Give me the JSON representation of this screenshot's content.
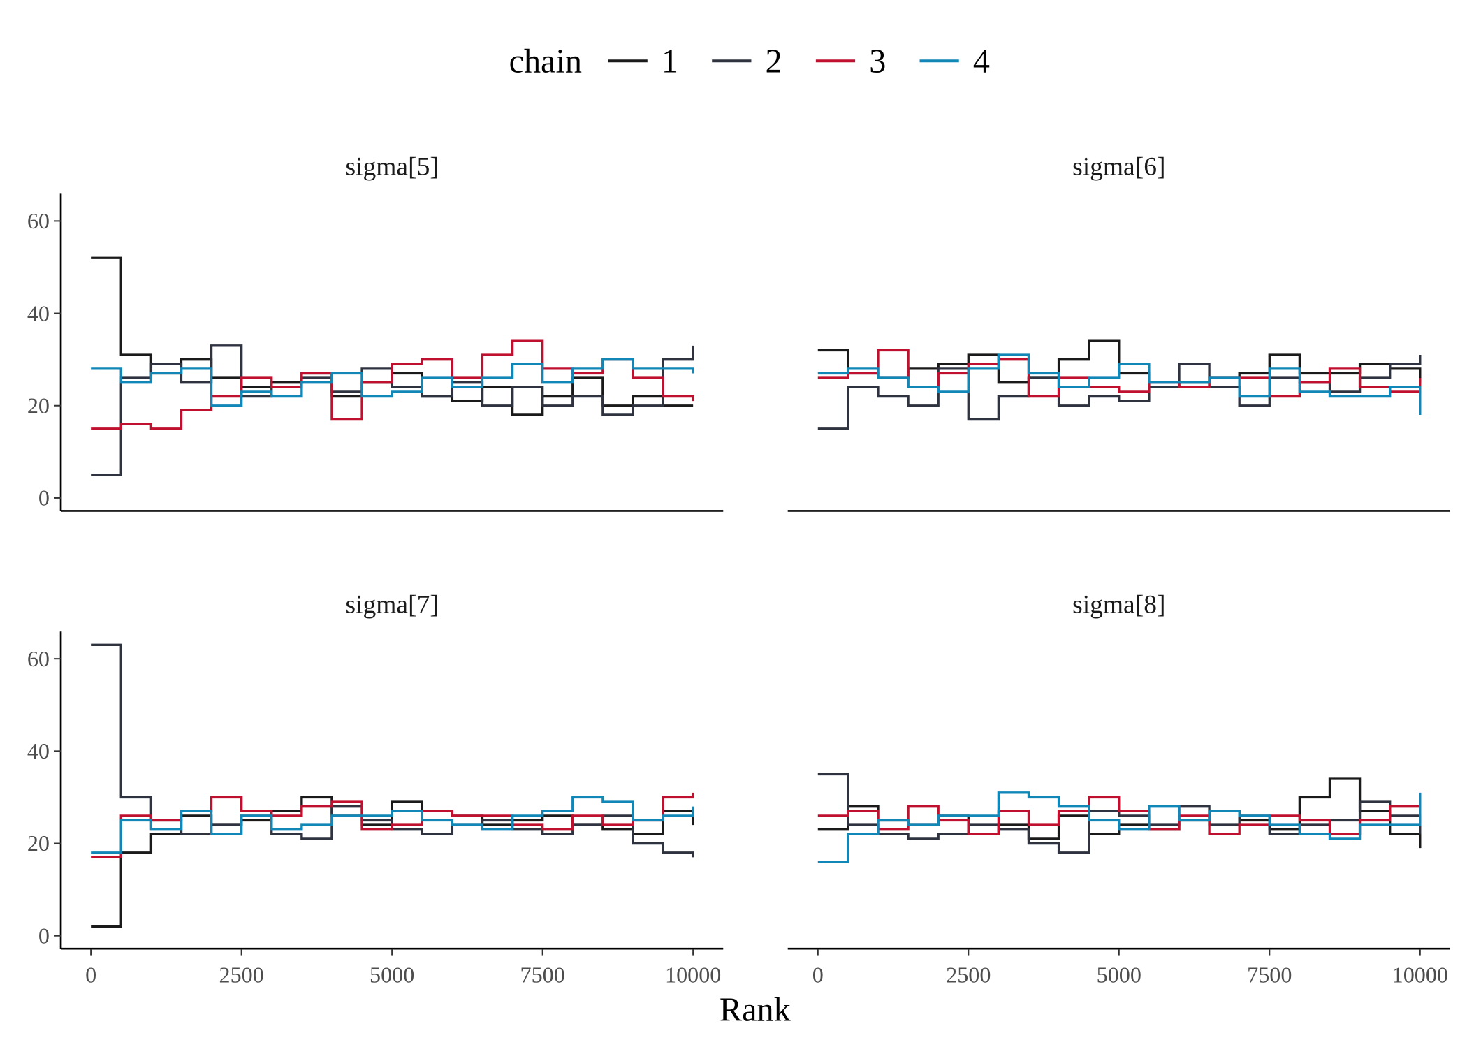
{
  "chart_data": {
    "type": "line",
    "step": true,
    "legend_title": "chain",
    "xlabel": "Rank",
    "x": [
      0,
      500,
      1000,
      1500,
      2000,
      2500,
      3000,
      3500,
      4000,
      4500,
      5000,
      5500,
      6000,
      6500,
      7000,
      7500,
      8000,
      8500,
      9000,
      9500,
      10000
    ],
    "xlim": [
      -500,
      10500
    ],
    "xticks": [
      0,
      2500,
      5000,
      7500,
      10000
    ],
    "ylim": [
      -2.8,
      65.9
    ],
    "yticks": [
      0,
      20,
      40,
      60
    ],
    "panels": [
      {
        "title": "sigma[5]",
        "series": [
          {
            "name": "1",
            "color": "#1a1a1a",
            "values": [
              52,
              31,
              27,
              30,
              26,
              24,
              25,
              27,
              22,
              25,
              27,
              22,
              21,
              24,
              18,
              22,
              26,
              20,
              22,
              20,
              20
            ]
          },
          {
            "name": "2",
            "color": "#2f3340",
            "values": [
              5,
              26,
              29,
              25,
              33,
              22,
              24,
              26,
              23,
              28,
              24,
              22,
              25,
              20,
              24,
              20,
              22,
              18,
              20,
              30,
              33
            ]
          },
          {
            "name": "3",
            "color": "#c0102f",
            "values": [
              15,
              16,
              15,
              19,
              22,
              26,
              24,
              27,
              17,
              25,
              29,
              30,
              26,
              31,
              34,
              28,
              27,
              30,
              26,
              22,
              21
            ]
          },
          {
            "name": "4",
            "color": "#1187b7",
            "values": [
              28,
              25,
              27,
              28,
              20,
              23,
              22,
              25,
              27,
              22,
              23,
              26,
              24,
              26,
              29,
              25,
              28,
              30,
              28,
              28,
              27
            ]
          }
        ]
      },
      {
        "title": "sigma[6]",
        "series": [
          {
            "name": "1",
            "color": "#1a1a1a",
            "values": [
              32,
              27,
              26,
              28,
              29,
              31,
              25,
              26,
              30,
              34,
              27,
              24,
              25,
              26,
              27,
              31,
              27,
              27,
              29,
              28,
              25
            ]
          },
          {
            "name": "2",
            "color": "#2f3340",
            "values": [
              15,
              24,
              22,
              20,
              28,
              17,
              22,
              26,
              20,
              22,
              21,
              24,
              29,
              24,
              20,
              26,
              25,
              23,
              26,
              29,
              31
            ]
          },
          {
            "name": "3",
            "color": "#c0102f",
            "values": [
              26,
              27,
              32,
              24,
              27,
              29,
              30,
              22,
              26,
              24,
              23,
              25,
              24,
              26,
              26,
              22,
              25,
              28,
              24,
              23,
              26
            ]
          },
          {
            "name": "4",
            "color": "#1187b7",
            "values": [
              27,
              28,
              26,
              24,
              23,
              28,
              31,
              27,
              24,
              26,
              29,
              25,
              25,
              26,
              22,
              28,
              23,
              22,
              22,
              24,
              18
            ]
          }
        ]
      },
      {
        "title": "sigma[7]",
        "series": [
          {
            "name": "1",
            "color": "#1a1a1a",
            "values": [
              2,
              18,
              22,
              26,
              24,
              25,
              27,
              30,
              26,
              24,
              29,
              27,
              26,
              24,
              25,
              26,
              24,
              23,
              22,
              27,
              24
            ]
          },
          {
            "name": "2",
            "color": "#2f3340",
            "values": [
              63,
              30,
              25,
              22,
              24,
              26,
              22,
              21,
              28,
              25,
              23,
              22,
              24,
              25,
              23,
              22,
              24,
              26,
              20,
              18,
              17
            ]
          },
          {
            "name": "3",
            "color": "#c0102f",
            "values": [
              17,
              26,
              25,
              27,
              30,
              27,
              26,
              28,
              29,
              23,
              24,
              27,
              26,
              26,
              24,
              23,
              26,
              24,
              25,
              30,
              31
            ]
          },
          {
            "name": "4",
            "color": "#1187b7",
            "values": [
              18,
              25,
              23,
              27,
              22,
              26,
              23,
              24,
              26,
              26,
              27,
              25,
              24,
              23,
              26,
              27,
              30,
              29,
              25,
              26,
              28
            ]
          }
        ]
      },
      {
        "title": "sigma[8]",
        "series": [
          {
            "name": "1",
            "color": "#1a1a1a",
            "values": [
              23,
              28,
              25,
              24,
              26,
              22,
              24,
              21,
              26,
              22,
              24,
              23,
              25,
              27,
              25,
              23,
              30,
              34,
              27,
              22,
              19
            ]
          },
          {
            "name": "2",
            "color": "#2f3340",
            "values": [
              35,
              24,
              22,
              21,
              22,
              24,
              23,
              20,
              18,
              27,
              26,
              24,
              28,
              24,
              26,
              22,
              24,
              25,
              29,
              26,
              22
            ]
          },
          {
            "name": "3",
            "color": "#c0102f",
            "values": [
              26,
              27,
              23,
              28,
              25,
              22,
              27,
              24,
              27,
              30,
              27,
              23,
              26,
              22,
              24,
              26,
              25,
              22,
              25,
              28,
              28
            ]
          },
          {
            "name": "4",
            "color": "#1187b7",
            "values": [
              16,
              22,
              25,
              24,
              26,
              26,
              31,
              30,
              28,
              25,
              23,
              28,
              25,
              27,
              26,
              24,
              22,
              21,
              24,
              24,
              31
            ]
          }
        ]
      }
    ]
  }
}
